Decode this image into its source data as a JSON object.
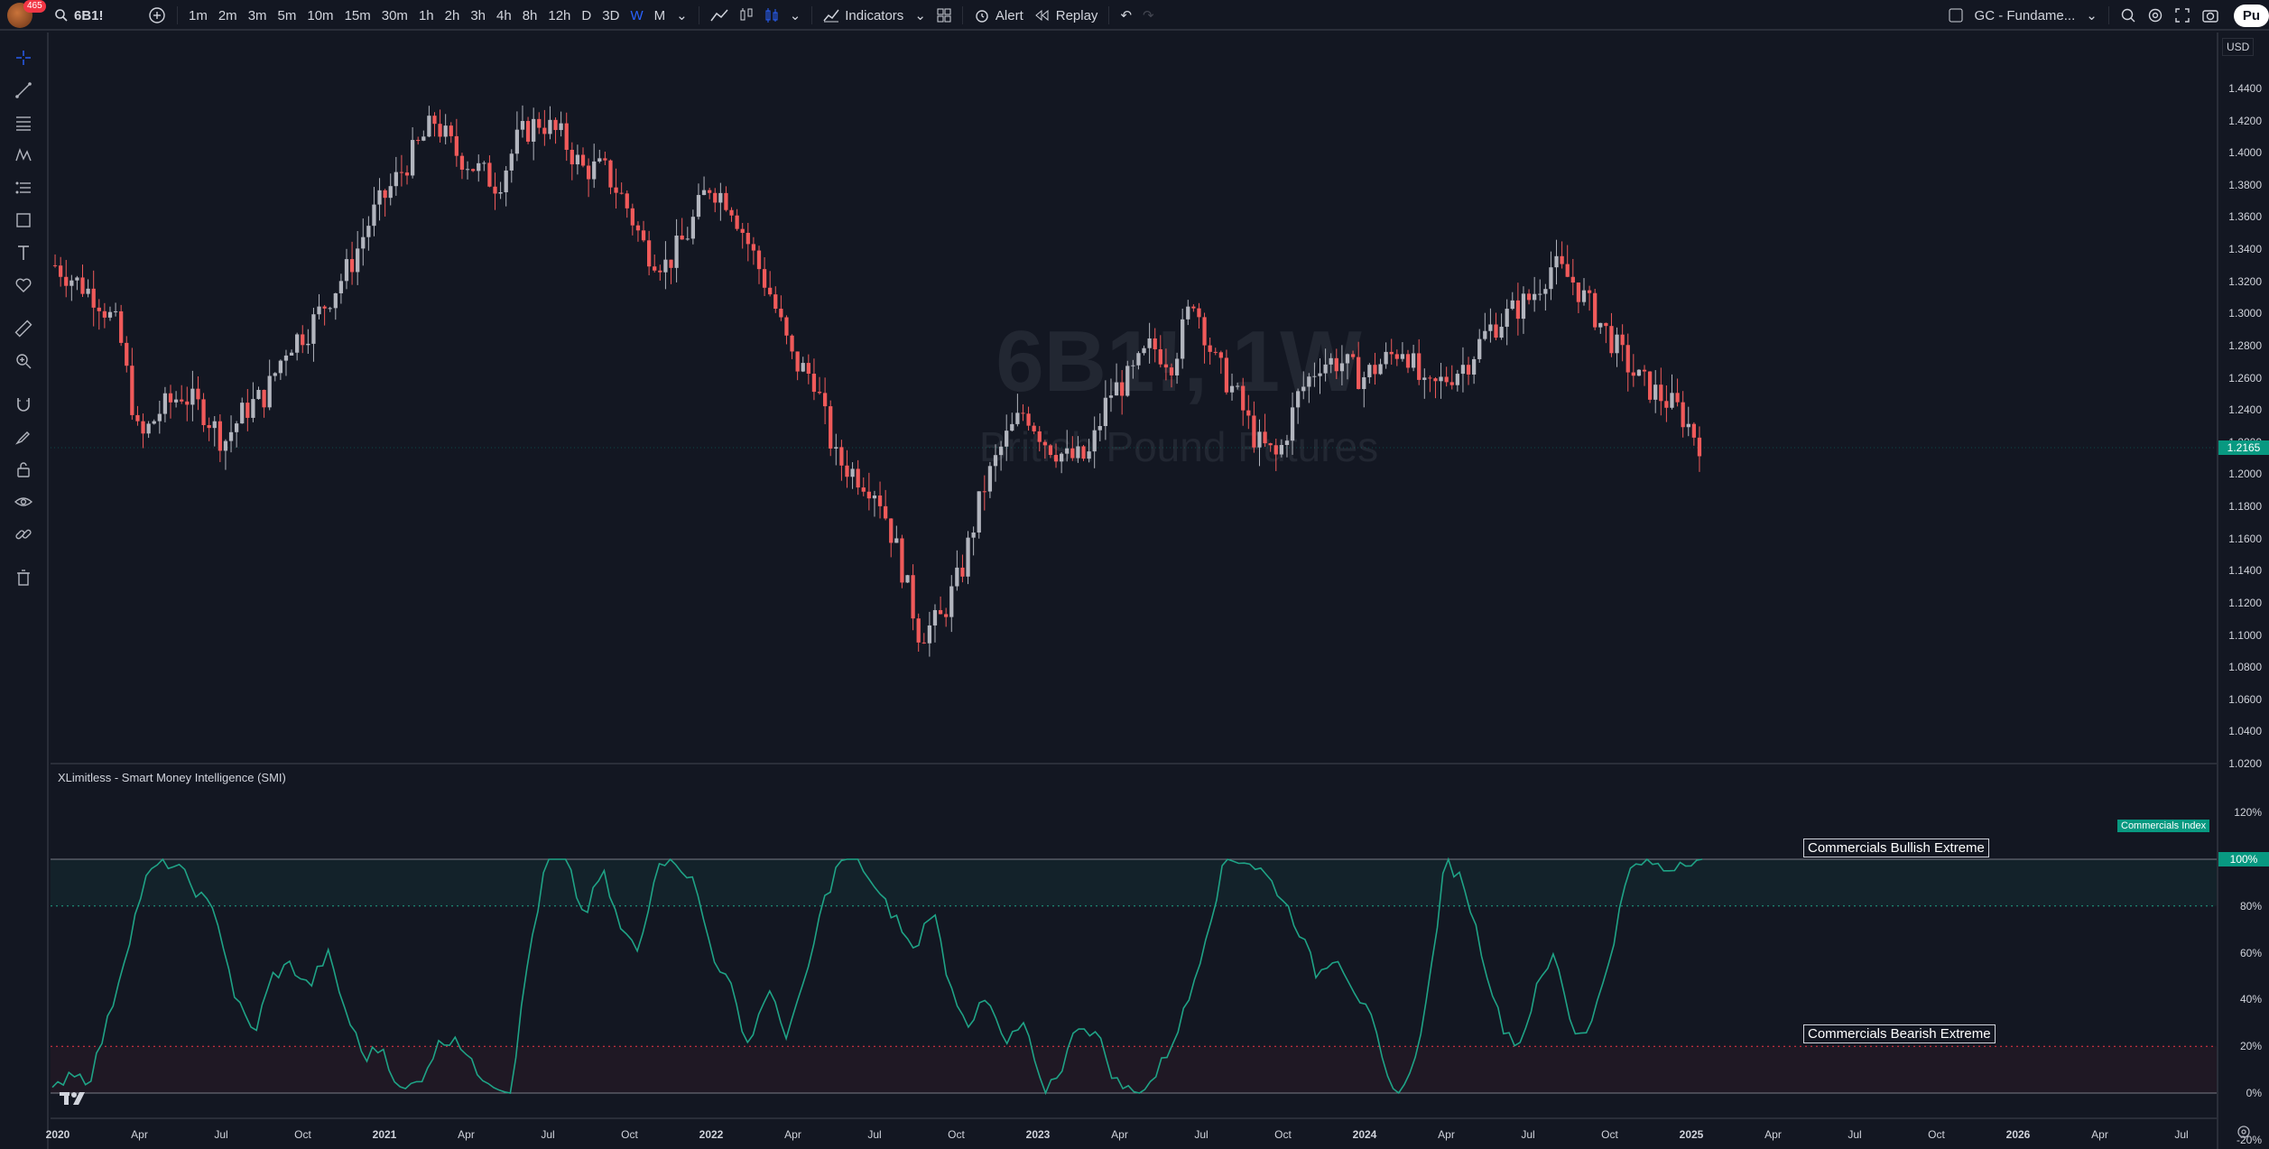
{
  "topbar": {
    "notif_count": "465",
    "symbol": "6B1!",
    "intervals": [
      "1m",
      "2m",
      "3m",
      "5m",
      "10m",
      "15m",
      "30m",
      "1h",
      "2h",
      "3h",
      "4h",
      "8h",
      "12h",
      "D",
      "3D",
      "W",
      "M"
    ],
    "active_interval": "W",
    "indicators_label": "Indicators",
    "alert_label": "Alert",
    "replay_label": "Replay",
    "layout_name": "GC - Fundame...",
    "publish_label": "Pu"
  },
  "chart": {
    "watermark_symbol": "6B1!, 1W",
    "watermark_name": "British Pound Futures",
    "currency": "USD",
    "last_price": "1.2165",
    "price_ticks": [
      "1.4400",
      "1.4200",
      "1.4000",
      "1.3800",
      "1.3600",
      "1.3400",
      "1.3200",
      "1.3000",
      "1.2800",
      "1.2600",
      "1.2400",
      "1.2200",
      "1.2000",
      "1.1800",
      "1.1600",
      "1.1400",
      "1.1200",
      "1.1000",
      "1.0800",
      "1.0600",
      "1.0400",
      "1.0200"
    ],
    "indicator_ticks": [
      "120%",
      "100%",
      "80%",
      "60%",
      "40%",
      "20%",
      "0%",
      "-20%"
    ],
    "indicator_title": "XLimitless - Smart Money Intelligence (SMI)",
    "bullish_label": "Commercials Bullish Extreme",
    "bearish_label": "Commercials Bearish Extreme",
    "index_label": "Commercials Index",
    "index_value": "100%",
    "date_ticks": [
      "2020",
      "Apr",
      "Jul",
      "Oct",
      "2021",
      "Apr",
      "Jul",
      "Oct",
      "2022",
      "Apr",
      "Jul",
      "Oct",
      "2023",
      "Apr",
      "Jul",
      "Oct",
      "2024",
      "Apr",
      "Jul",
      "Oct",
      "2025",
      "Apr",
      "Jul",
      "Oct",
      "2026",
      "Apr",
      "Jul"
    ],
    "up_color": "#b2b5be",
    "down_color": "#f05a5a",
    "osc_color": "#1fa386"
  },
  "chart_data": {
    "type": "candlestick",
    "title": "6B1!, 1W",
    "ylim": [
      1.02,
      1.44
    ],
    "x_range": [
      "2020-01",
      "2026-09"
    ],
    "series": [
      {
        "name": "6B1!",
        "values": [
          1.33,
          1.32,
          1.31,
          1.29,
          1.22,
          1.24,
          1.25,
          1.24,
          1.22,
          1.24,
          1.25,
          1.28,
          1.29,
          1.31,
          1.33,
          1.36,
          1.38,
          1.4,
          1.42,
          1.4,
          1.39,
          1.38,
          1.41,
          1.42,
          1.41,
          1.39,
          1.39,
          1.37,
          1.34,
          1.33,
          1.35,
          1.38,
          1.37,
          1.34,
          1.31,
          1.27,
          1.26,
          1.21,
          1.2,
          1.19,
          1.15,
          1.1,
          1.11,
          1.14,
          1.19,
          1.22,
          1.24,
          1.22,
          1.21,
          1.21,
          1.25,
          1.26,
          1.28,
          1.27,
          1.31,
          1.27,
          1.25,
          1.22,
          1.21,
          1.25,
          1.27,
          1.27,
          1.26,
          1.27,
          1.28,
          1.25,
          1.26,
          1.27,
          1.29,
          1.3,
          1.31,
          1.33,
          1.32,
          1.3,
          1.28,
          1.26,
          1.25,
          1.24,
          1.22
        ]
      },
      {
        "name": "Commercials Index",
        "values": [
          0,
          10,
          5,
          30,
          60,
          90,
          100,
          95,
          85,
          75,
          40,
          25,
          50,
          55,
          45,
          60,
          35,
          15,
          20,
          0,
          5,
          20,
          25,
          10,
          5,
          0,
          60,
          100,
          100,
          75,
          95,
          70,
          60,
          100,
          100,
          90,
          60,
          45,
          20,
          45,
          25,
          45,
          80,
          100,
          100,
          85,
          75,
          60,
          80,
          45,
          30,
          40,
          20,
          30,
          0,
          10,
          30,
          25,
          5,
          0,
          5,
          20,
          40,
          70,
          100,
          100,
          95,
          85,
          70,
          50,
          60,
          45,
          30,
          0,
          5,
          40,
          100,
          90,
          60,
          30,
          20,
          45,
          60,
          25,
          30,
          60,
          95,
          100,
          95,
          100,
          100
        ]
      }
    ],
    "ylabel": "",
    "xlabel": ""
  }
}
